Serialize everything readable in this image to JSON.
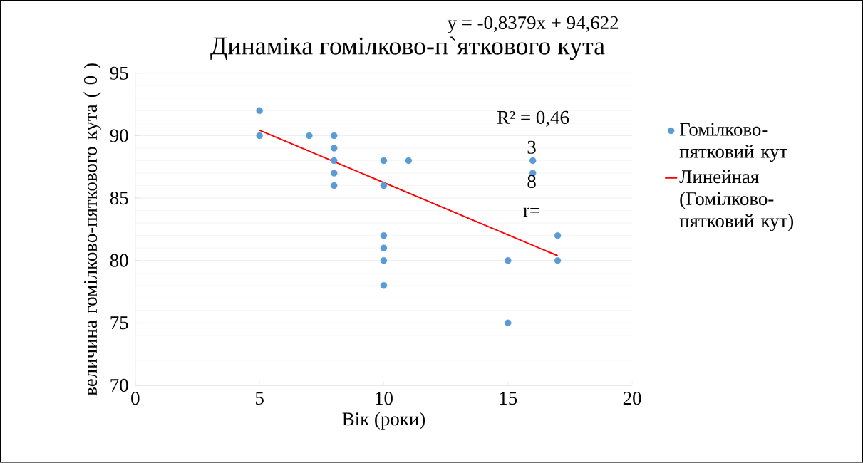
{
  "chart_data": {
    "type": "scatter",
    "title": "Динаміка гомілково-п`яткового кута",
    "xlabel": "Вік (роки)",
    "ylabel": "величина гомілково-пяткового кута ( 0 )",
    "xlim": [
      0,
      20
    ],
    "ylim": [
      70,
      95
    ],
    "xticks": [
      0,
      5,
      10,
      15,
      20
    ],
    "yticks": [
      70,
      75,
      80,
      85,
      90,
      95
    ],
    "grid": "y",
    "legend": "right",
    "marker": "circle",
    "annotations": [
      "y = -0,8379x + 94,622",
      "R² = 0,46",
      "3",
      "8",
      "r="
    ],
    "series": [
      {
        "name": "Гомілково-пятковий кут",
        "color": "#5b9bd5",
        "x": [
          5,
          5,
          7,
          8,
          8,
          8,
          8,
          8,
          10,
          10,
          10,
          10,
          10,
          10,
          11,
          15,
          15,
          16,
          16,
          17,
          17
        ],
        "values": [
          92,
          90,
          90,
          90,
          89,
          88,
          87,
          86,
          88,
          86,
          82,
          81,
          80,
          78,
          88,
          80,
          75,
          88,
          87,
          82,
          80
        ]
      },
      {
        "name": "Линейная (Гомілково-пятковий кут)",
        "type": "line",
        "color": "#ff0000",
        "marker": "none",
        "x": [
          5,
          17
        ],
        "values": [
          90.43,
          80.38
        ]
      }
    ]
  }
}
